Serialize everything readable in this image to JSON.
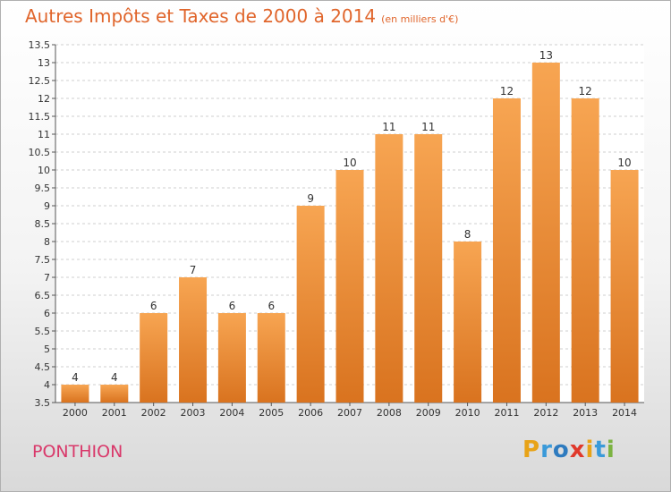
{
  "header": {
    "title": "Autres Impôts et Taxes de 2000 à 2014",
    "unit": "(en milliers d'€)"
  },
  "commune": "PONTHION",
  "logo": {
    "text": "Proxiti",
    "letters": [
      {
        "ch": "P",
        "color": "#e8a317"
      },
      {
        "ch": "r",
        "color": "#3a9ad9"
      },
      {
        "ch": "o",
        "color": "#2e7bbf"
      },
      {
        "ch": "x",
        "color": "#e0392b"
      },
      {
        "ch": "i",
        "color": "#e8a317"
      },
      {
        "ch": "t",
        "color": "#3a9ad9"
      },
      {
        "ch": "i",
        "color": "#7cb342"
      }
    ]
  },
  "colors": {
    "bar_light": "#f7a552",
    "bar_dark": "#d9731f",
    "title": "#e0652b",
    "commune": "#d9386a",
    "grid": "#cfcfcf"
  },
  "chart_data": {
    "type": "bar",
    "title": "Autres Impôts et Taxes de 2000 à 2014",
    "xlabel": "",
    "ylabel": "",
    "categories": [
      "2000",
      "2001",
      "2002",
      "2003",
      "2004",
      "2005",
      "2006",
      "2007",
      "2008",
      "2009",
      "2010",
      "2011",
      "2012",
      "2013",
      "2014"
    ],
    "values": [
      4,
      4,
      6,
      7,
      6,
      6,
      9,
      10,
      11,
      11,
      8,
      12,
      13,
      12,
      10
    ],
    "ylim": [
      3.5,
      13.5
    ],
    "yticks": [
      "3.5",
      "4",
      "4.5",
      "5",
      "5.5",
      "6",
      "6.5",
      "7",
      "7.5",
      "8",
      "8.5",
      "9",
      "9.5",
      "10",
      "10.5",
      "11",
      "11.5",
      "12",
      "12.5",
      "13",
      "13.5"
    ],
    "grid": true,
    "legend": "none"
  }
}
